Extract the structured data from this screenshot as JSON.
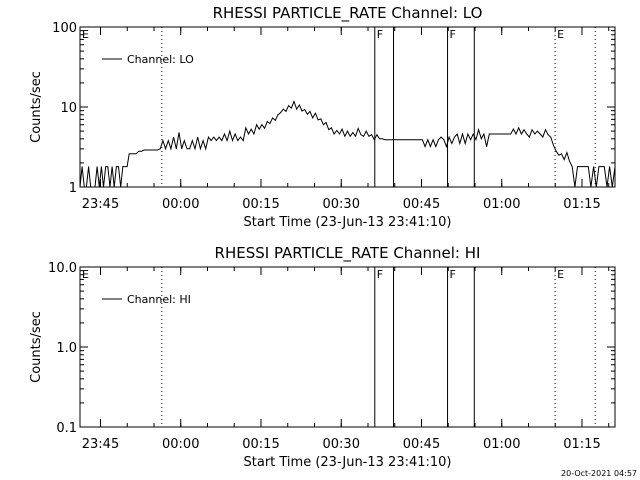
{
  "footer_timestamp": "20-Oct-2021 04:57",
  "chart_data": [
    {
      "type": "line",
      "title": "RHESSI PARTICLE_RATE Channel: LO",
      "xlabel": "Start Time (23-Jun-13 23:41:10)",
      "ylabel": "Counts/sec",
      "y_scale": "log",
      "ylim": [
        1,
        100
      ],
      "y_ticks": [
        "1",
        "10",
        "100"
      ],
      "x_range_minutes": [
        0,
        100
      ],
      "x_ticks": [
        {
          "label": "23:45",
          "minute": 3.83
        },
        {
          "label": "00:00",
          "minute": 18.83
        },
        {
          "label": "00:15",
          "minute": 33.83
        },
        {
          "label": "00:30",
          "minute": 48.83
        },
        {
          "label": "00:45",
          "minute": 63.83
        },
        {
          "label": "01:00",
          "minute": 78.83
        },
        {
          "label": "01:15",
          "minute": 93.83
        }
      ],
      "legend": "top-left",
      "series": [
        {
          "name": "Channel: LO",
          "points": [
            [
              0,
              1.0
            ],
            [
              0.4,
              1.8
            ],
            [
              0.8,
              1.0
            ],
            [
              1.2,
              1.0
            ],
            [
              1.6,
              1.8
            ],
            [
              2,
              1.0
            ],
            [
              2.4,
              1.0
            ],
            [
              2.8,
              1.0
            ],
            [
              3.2,
              1.8
            ],
            [
              3.6,
              1.0
            ],
            [
              4,
              1.8
            ],
            [
              4.4,
              1.0
            ],
            [
              4.8,
              1.8
            ],
            [
              5.2,
              1.8
            ],
            [
              5.6,
              1.0
            ],
            [
              6,
              1.8
            ],
            [
              6.4,
              1.0
            ],
            [
              6.8,
              1.8
            ],
            [
              7.2,
              1.8
            ],
            [
              7.6,
              1.0
            ],
            [
              8,
              1.8
            ],
            [
              8.4,
              1.8
            ],
            [
              8.8,
              1.8
            ],
            [
              9.2,
              2.6
            ],
            [
              9.6,
              2.6
            ],
            [
              10,
              2.6
            ],
            [
              10.5,
              2.6
            ],
            [
              11,
              2.8
            ],
            [
              11.5,
              2.8
            ],
            [
              12,
              2.9
            ],
            [
              12.5,
              2.9
            ],
            [
              13,
              2.9
            ],
            [
              13.5,
              2.9
            ],
            [
              14,
              2.9
            ],
            [
              14.5,
              2.9
            ],
            [
              15,
              3.0
            ],
            [
              15.5,
              3.8
            ],
            [
              16,
              3.0
            ],
            [
              16.5,
              3.8
            ],
            [
              17,
              3.0
            ],
            [
              17.5,
              4.2
            ],
            [
              18,
              3.0
            ],
            [
              18.5,
              4.8
            ],
            [
              19,
              3.0
            ],
            [
              19.5,
              3.8
            ],
            [
              20,
              3.0
            ],
            [
              20.5,
              3.0
            ],
            [
              21,
              3.8
            ],
            [
              21.5,
              3.0
            ],
            [
              22,
              4.2
            ],
            [
              22.5,
              3.0
            ],
            [
              23,
              3.8
            ],
            [
              23.5,
              3.0
            ],
            [
              24,
              4.2
            ],
            [
              24.5,
              3.8
            ],
            [
              25,
              4.2
            ],
            [
              25.5,
              3.8
            ],
            [
              26,
              4.2
            ],
            [
              26.5,
              3.8
            ],
            [
              27,
              4.6
            ],
            [
              27.5,
              3.8
            ],
            [
              28,
              5.0
            ],
            [
              28.5,
              3.8
            ],
            [
              29,
              4.6
            ],
            [
              29.5,
              3.8
            ],
            [
              30,
              4.2
            ],
            [
              30.5,
              3.8
            ],
            [
              31,
              5.5
            ],
            [
              31.5,
              4.6
            ],
            [
              32,
              5.3
            ],
            [
              32.5,
              4.6
            ],
            [
              33,
              6.0
            ],
            [
              33.5,
              5.3
            ],
            [
              34,
              6.0
            ],
            [
              34.5,
              5.4
            ],
            [
              35,
              6.6
            ],
            [
              35.5,
              6.2
            ],
            [
              36,
              7.3
            ],
            [
              36.5,
              6.8
            ],
            [
              37,
              8.0
            ],
            [
              37.5,
              8.5
            ],
            [
              38,
              9.4
            ],
            [
              38.5,
              8.8
            ],
            [
              39,
              10.4
            ],
            [
              39.5,
              9.7
            ],
            [
              40,
              11.7
            ],
            [
              40.5,
              9.4
            ],
            [
              41,
              10.6
            ],
            [
              41.5,
              8.9
            ],
            [
              42,
              9.3
            ],
            [
              42.5,
              8.1
            ],
            [
              43,
              8.8
            ],
            [
              43.5,
              7.3
            ],
            [
              44,
              8.4
            ],
            [
              44.5,
              6.9
            ],
            [
              45,
              7.1
            ],
            [
              45.5,
              6.0
            ],
            [
              46,
              6.4
            ],
            [
              46.5,
              5.2
            ],
            [
              47,
              5.5
            ],
            [
              47.5,
              4.6
            ],
            [
              48,
              5.1
            ],
            [
              48.5,
              4.6
            ],
            [
              49,
              5.3
            ],
            [
              49.5,
              4.3
            ],
            [
              50,
              5.0
            ],
            [
              50.5,
              4.3
            ],
            [
              51,
              4.8
            ],
            [
              51.5,
              4.3
            ],
            [
              52,
              5.4
            ],
            [
              52.5,
              4.5
            ],
            [
              53,
              4.3
            ],
            [
              53.5,
              5.0
            ],
            [
              54,
              4.3
            ],
            [
              54.5,
              4.5
            ],
            [
              55,
              3.9
            ],
            [
              55.5,
              4.5
            ],
            [
              56,
              4.0
            ],
            [
              56.5,
              4.0
            ],
            [
              57,
              3.9
            ],
            [
              57.5,
              3.9
            ],
            [
              58,
              3.9
            ],
            [
              58.5,
              3.9
            ],
            [
              59,
              3.9
            ],
            [
              59.5,
              3.9
            ],
            [
              60,
              3.9
            ],
            [
              60.5,
              3.9
            ],
            [
              61,
              3.9
            ],
            [
              61.5,
              3.9
            ],
            [
              62,
              3.9
            ],
            [
              62.5,
              3.9
            ],
            [
              63,
              3.9
            ],
            [
              63.5,
              3.9
            ],
            [
              64,
              3.9
            ],
            [
              64.5,
              3.2
            ],
            [
              65,
              3.9
            ],
            [
              65.5,
              3.2
            ],
            [
              66,
              3.9
            ],
            [
              66.5,
              3.2
            ],
            [
              67,
              3.9
            ],
            [
              67.5,
              4.2
            ],
            [
              68,
              3.9
            ],
            [
              68.5,
              3.2
            ],
            [
              69,
              4.2
            ],
            [
              69.5,
              3.5
            ],
            [
              70,
              4.2
            ],
            [
              70.5,
              4.6
            ],
            [
              71,
              3.5
            ],
            [
              71.5,
              4.6
            ],
            [
              72,
              3.5
            ],
            [
              72.5,
              4.6
            ],
            [
              73,
              3.9
            ],
            [
              73.5,
              4.6
            ],
            [
              74,
              3.9
            ],
            [
              74.5,
              5.2
            ],
            [
              75,
              4.0
            ],
            [
              75.5,
              4.6
            ],
            [
              76,
              3.2
            ],
            [
              76.5,
              4.6
            ],
            [
              77,
              4.6
            ],
            [
              77.5,
              4.6
            ],
            [
              78,
              4.6
            ],
            [
              78.5,
              4.6
            ],
            [
              79,
              4.6
            ],
            [
              79.5,
              4.6
            ],
            [
              80,
              4.6
            ],
            [
              80.5,
              4.6
            ],
            [
              81,
              5.3
            ],
            [
              81.5,
              4.6
            ],
            [
              82,
              5.5
            ],
            [
              82.5,
              4.6
            ],
            [
              83,
              5.2
            ],
            [
              83.5,
              4.6
            ],
            [
              84,
              4.2
            ],
            [
              84.5,
              5.2
            ],
            [
              85,
              4.6
            ],
            [
              85.5,
              5.0
            ],
            [
              86,
              4.6
            ],
            [
              86.5,
              4.2
            ],
            [
              87,
              5.2
            ],
            [
              87.5,
              4.5
            ],
            [
              88,
              4.2
            ],
            [
              88.5,
              3.3
            ],
            [
              89,
              2.8
            ],
            [
              89.5,
              2.5
            ],
            [
              90,
              2.6
            ],
            [
              90.5,
              2.2
            ],
            [
              91,
              2.7
            ],
            [
              91.5,
              2.1
            ],
            [
              92,
              1.8
            ],
            [
              92.5,
              1.0
            ],
            [
              93,
              1.8
            ],
            [
              93.5,
              1.8
            ],
            [
              94,
              1.8
            ],
            [
              94.5,
              1.8
            ],
            [
              95,
              1.8
            ],
            [
              95.5,
              1.0
            ],
            [
              96,
              1.8
            ],
            [
              96.5,
              1.0
            ],
            [
              97,
              1.8
            ],
            [
              97.5,
              1.8
            ],
            [
              98,
              1.8
            ],
            [
              98.5,
              1.0
            ],
            [
              99,
              1.8
            ],
            [
              99.5,
              1.0
            ],
            [
              100,
              1.8
            ]
          ]
        }
      ],
      "event_markers": [
        {
          "label": "E",
          "minute": 0,
          "style": "dotted"
        },
        {
          "label": "",
          "minute": 15.3,
          "style": "dotted"
        },
        {
          "label": "F",
          "minute": 55.1,
          "style": "solid"
        },
        {
          "label": "",
          "minute": 58.6,
          "style": "solid"
        },
        {
          "label": "F",
          "minute": 68.7,
          "style": "solid"
        },
        {
          "label": "",
          "minute": 73.7,
          "style": "solid"
        },
        {
          "label": "E",
          "minute": 88.8,
          "style": "dotted"
        },
        {
          "label": "",
          "minute": 96.3,
          "style": "dotted"
        }
      ]
    },
    {
      "type": "line",
      "title": "RHESSI PARTICLE_RATE Channel: HI",
      "xlabel": "Start Time (23-Jun-13 23:41:10)",
      "ylabel": "Counts/sec",
      "y_scale": "log",
      "ylim": [
        0.1,
        10.0
      ],
      "y_ticks": [
        "0.1",
        "1.0",
        "10.0"
      ],
      "x_range_minutes": [
        0,
        100
      ],
      "x_ticks": [
        {
          "label": "23:45",
          "minute": 3.83
        },
        {
          "label": "00:00",
          "minute": 18.83
        },
        {
          "label": "00:15",
          "minute": 33.83
        },
        {
          "label": "00:30",
          "minute": 48.83
        },
        {
          "label": "00:45",
          "minute": 63.83
        },
        {
          "label": "01:00",
          "minute": 78.83
        },
        {
          "label": "01:15",
          "minute": 93.83
        }
      ],
      "legend": "top-left",
      "series": [
        {
          "name": "Channel: HI",
          "points": []
        }
      ],
      "event_markers": [
        {
          "label": "E",
          "minute": 0,
          "style": "dotted"
        },
        {
          "label": "",
          "minute": 15.3,
          "style": "dotted"
        },
        {
          "label": "F",
          "minute": 55.1,
          "style": "solid"
        },
        {
          "label": "",
          "minute": 58.6,
          "style": "solid"
        },
        {
          "label": "F",
          "minute": 68.7,
          "style": "solid"
        },
        {
          "label": "",
          "minute": 73.7,
          "style": "solid"
        },
        {
          "label": "E",
          "minute": 88.8,
          "style": "dotted"
        },
        {
          "label": "",
          "minute": 96.3,
          "style": "dotted"
        }
      ]
    }
  ]
}
